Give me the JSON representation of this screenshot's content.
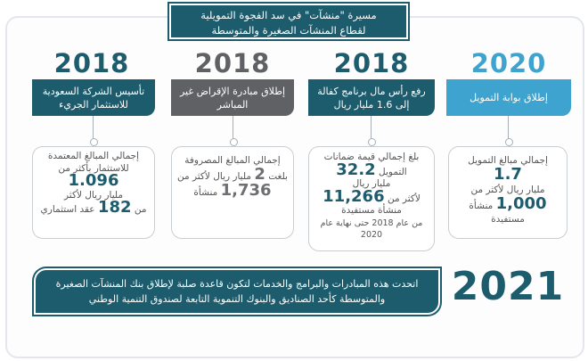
{
  "title": {
    "line1": "مسيرة \"منشآت\" في سد الفجوة التمويلية",
    "line2": "لقطاع المنشآت الصغيرة والمتوسطة"
  },
  "colors": {
    "teal": "#1d5c6d",
    "gray": "#5f6164",
    "light_blue": "#3fa3cf",
    "text_gray": "#6d6f72"
  },
  "milestones": [
    {
      "year": "2020",
      "banner": "إطلاق بوابة التمويل",
      "card_lines": [
        "إجمالي مبالغ التمويل",
        "1.7",
        "مليار ريال لأكثر من",
        "1,000",
        "منشأة",
        "مستفيدة"
      ]
    },
    {
      "year": "2018",
      "banner": "رفع رأس مال برنامج كفالة إلى 1.6 مليار ريال",
      "card_lines": [
        "بلغ إجمالي قيمة ضمانات",
        "التمويل",
        "32.2",
        "مليار ريال",
        "لأكثر من",
        "11,266",
        "منشأة مستفيدة",
        "من عام 2018 حتى نهاية عام 2020"
      ]
    },
    {
      "year": "2018",
      "banner": "إطلاق مبادرة الإقراض غير المباشر",
      "card_lines": [
        "إجمالي المبالغ المصروفة",
        "بلغت",
        "2",
        "مليار ريال لأكثر من",
        "1,736",
        "منشأة"
      ]
    },
    {
      "year": "2018",
      "banner": "تأسيس الشركة السعودية للاستثمار الجريء",
      "card_lines": [
        "إجمالي المبالغ المعتمدة",
        "للاستثمار بأكثر من",
        "1.096",
        "مليار ريال لأكثر",
        "من",
        "182",
        "عقد استثماري"
      ]
    }
  ],
  "footer": {
    "text": "اتحدت هذه المبادرات والبرامج والخدمات لتكون قاعدة صلبة لإطلاق بنك المنشآت الصغيرة والمتوسطة كأحد الصناديق والبنوك التنموية التابعة لصندوق التنمية الوطني",
    "year": "2021"
  }
}
